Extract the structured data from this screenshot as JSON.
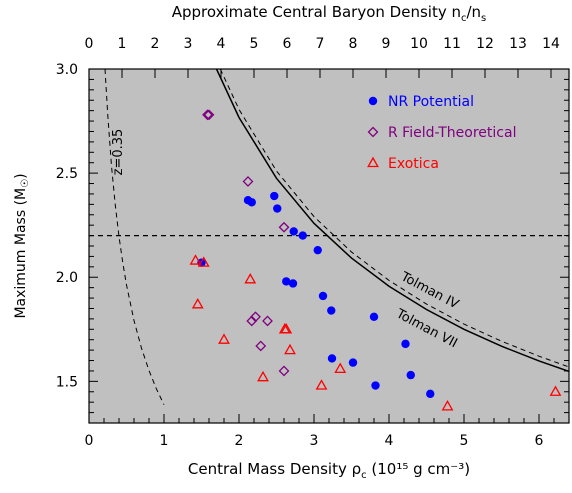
{
  "chart_data": {
    "type": "scatter",
    "title": "",
    "xlabel": "Central Mass Density ρ",
    "xlabel_sub": "c",
    "xlabel_units": " (10¹⁵ g cm⁻³)",
    "ylabel": "Maximum Mass (M",
    "ylabel_sun": "☉",
    "ylabel_end": ")",
    "top_axis_label": "Approximate Central Baryon Density n",
    "top_axis_sub1": "c",
    "top_axis_mid": "/n",
    "top_axis_sub2": "s",
    "xlim": [
      0,
      6.4
    ],
    "ylim": [
      1.3,
      3.0
    ],
    "x_ticks": [
      "0",
      "1",
      "2",
      "3",
      "4",
      "5",
      "6"
    ],
    "y_ticks": [
      "1.5",
      "2.0",
      "2.5",
      "3.0"
    ],
    "top_ticks": [
      "0",
      "1",
      "2",
      "3",
      "4",
      "5",
      "6",
      "7",
      "8",
      "9",
      "10",
      "11",
      "12",
      "13",
      "14"
    ],
    "top_tick_step": 0.44,
    "legend_position": "top-right",
    "background_color": "#c0c0c0",
    "series": [
      {
        "name": "NR Potential",
        "marker": "circle",
        "color": "#0000ff",
        "points": [
          {
            "x": 2.12,
            "y": 2.37
          },
          {
            "x": 2.17,
            "y": 2.36
          },
          {
            "x": 2.47,
            "y": 2.39
          },
          {
            "x": 2.51,
            "y": 2.33
          },
          {
            "x": 2.73,
            "y": 2.22
          },
          {
            "x": 2.85,
            "y": 2.2
          },
          {
            "x": 3.05,
            "y": 2.13
          },
          {
            "x": 1.5,
            "y": 2.07
          },
          {
            "x": 2.63,
            "y": 1.98
          },
          {
            "x": 2.72,
            "y": 1.97
          },
          {
            "x": 3.12,
            "y": 1.91
          },
          {
            "x": 3.23,
            "y": 1.84
          },
          {
            "x": 3.8,
            "y": 1.81
          },
          {
            "x": 4.22,
            "y": 1.68
          },
          {
            "x": 3.24,
            "y": 1.61
          },
          {
            "x": 3.52,
            "y": 1.59
          },
          {
            "x": 4.29,
            "y": 1.53
          },
          {
            "x": 3.82,
            "y": 1.48
          },
          {
            "x": 4.55,
            "y": 1.44
          }
        ]
      },
      {
        "name": "R Field-Theoretical",
        "marker": "diamond",
        "color": "#800080",
        "points": [
          {
            "x": 1.6,
            "y": 2.78
          },
          {
            "x": 1.58,
            "y": 2.78
          },
          {
            "x": 2.12,
            "y": 2.46
          },
          {
            "x": 2.6,
            "y": 2.24
          },
          {
            "x": 2.22,
            "y": 1.81
          },
          {
            "x": 2.38,
            "y": 1.79
          },
          {
            "x": 2.17,
            "y": 1.79
          },
          {
            "x": 2.29,
            "y": 1.67
          },
          {
            "x": 2.6,
            "y": 1.55
          }
        ]
      },
      {
        "name": "Exotica",
        "marker": "triangle",
        "color": "#ff0000",
        "points": [
          {
            "x": 1.42,
            "y": 2.08
          },
          {
            "x": 1.53,
            "y": 2.07
          },
          {
            "x": 2.15,
            "y": 1.99
          },
          {
            "x": 1.45,
            "y": 1.87
          },
          {
            "x": 2.61,
            "y": 1.75
          },
          {
            "x": 2.63,
            "y": 1.75
          },
          {
            "x": 1.8,
            "y": 1.7
          },
          {
            "x": 2.68,
            "y": 1.65
          },
          {
            "x": 2.32,
            "y": 1.52
          },
          {
            "x": 3.35,
            "y": 1.56
          },
          {
            "x": 3.1,
            "y": 1.48
          },
          {
            "x": 4.78,
            "y": 1.38
          },
          {
            "x": 6.22,
            "y": 1.45
          }
        ]
      }
    ],
    "reference_lines": [
      {
        "label": "",
        "style": "dashed",
        "kind": "horizontal",
        "y": 2.2
      },
      {
        "label": "Tolman VII",
        "style": "solid",
        "kind": "curve",
        "x": [
          1.7,
          2.0,
          2.5,
          3.0,
          3.5,
          4.0,
          4.5,
          5.0,
          5.5,
          6.0,
          6.4
        ],
        "y": [
          3.0,
          2.767,
          2.475,
          2.259,
          2.092,
          1.957,
          1.845,
          1.75,
          1.669,
          1.598,
          1.548
        ]
      },
      {
        "label": "Tolman IV",
        "style": "dashed",
        "kind": "curve",
        "x": [
          1.75,
          2.0,
          2.5,
          3.0,
          3.5,
          4.0,
          4.5,
          5.0,
          5.5,
          6.0,
          6.4
        ],
        "y": [
          3.0,
          2.806,
          2.51,
          2.291,
          2.121,
          1.985,
          1.871,
          1.775,
          1.693,
          1.621,
          1.569
        ]
      },
      {
        "label": "z=0.35",
        "style": "dashed",
        "kind": "curve",
        "x": [
          0.214,
          0.25,
          0.3,
          0.35,
          0.4,
          0.45,
          0.5,
          0.6,
          0.7,
          0.8,
          0.9,
          1.0
        ],
        "y": [
          3.0,
          2.776,
          2.534,
          2.346,
          2.195,
          2.069,
          1.963,
          1.792,
          1.659,
          1.552,
          1.463,
          1.388
        ]
      }
    ]
  }
}
